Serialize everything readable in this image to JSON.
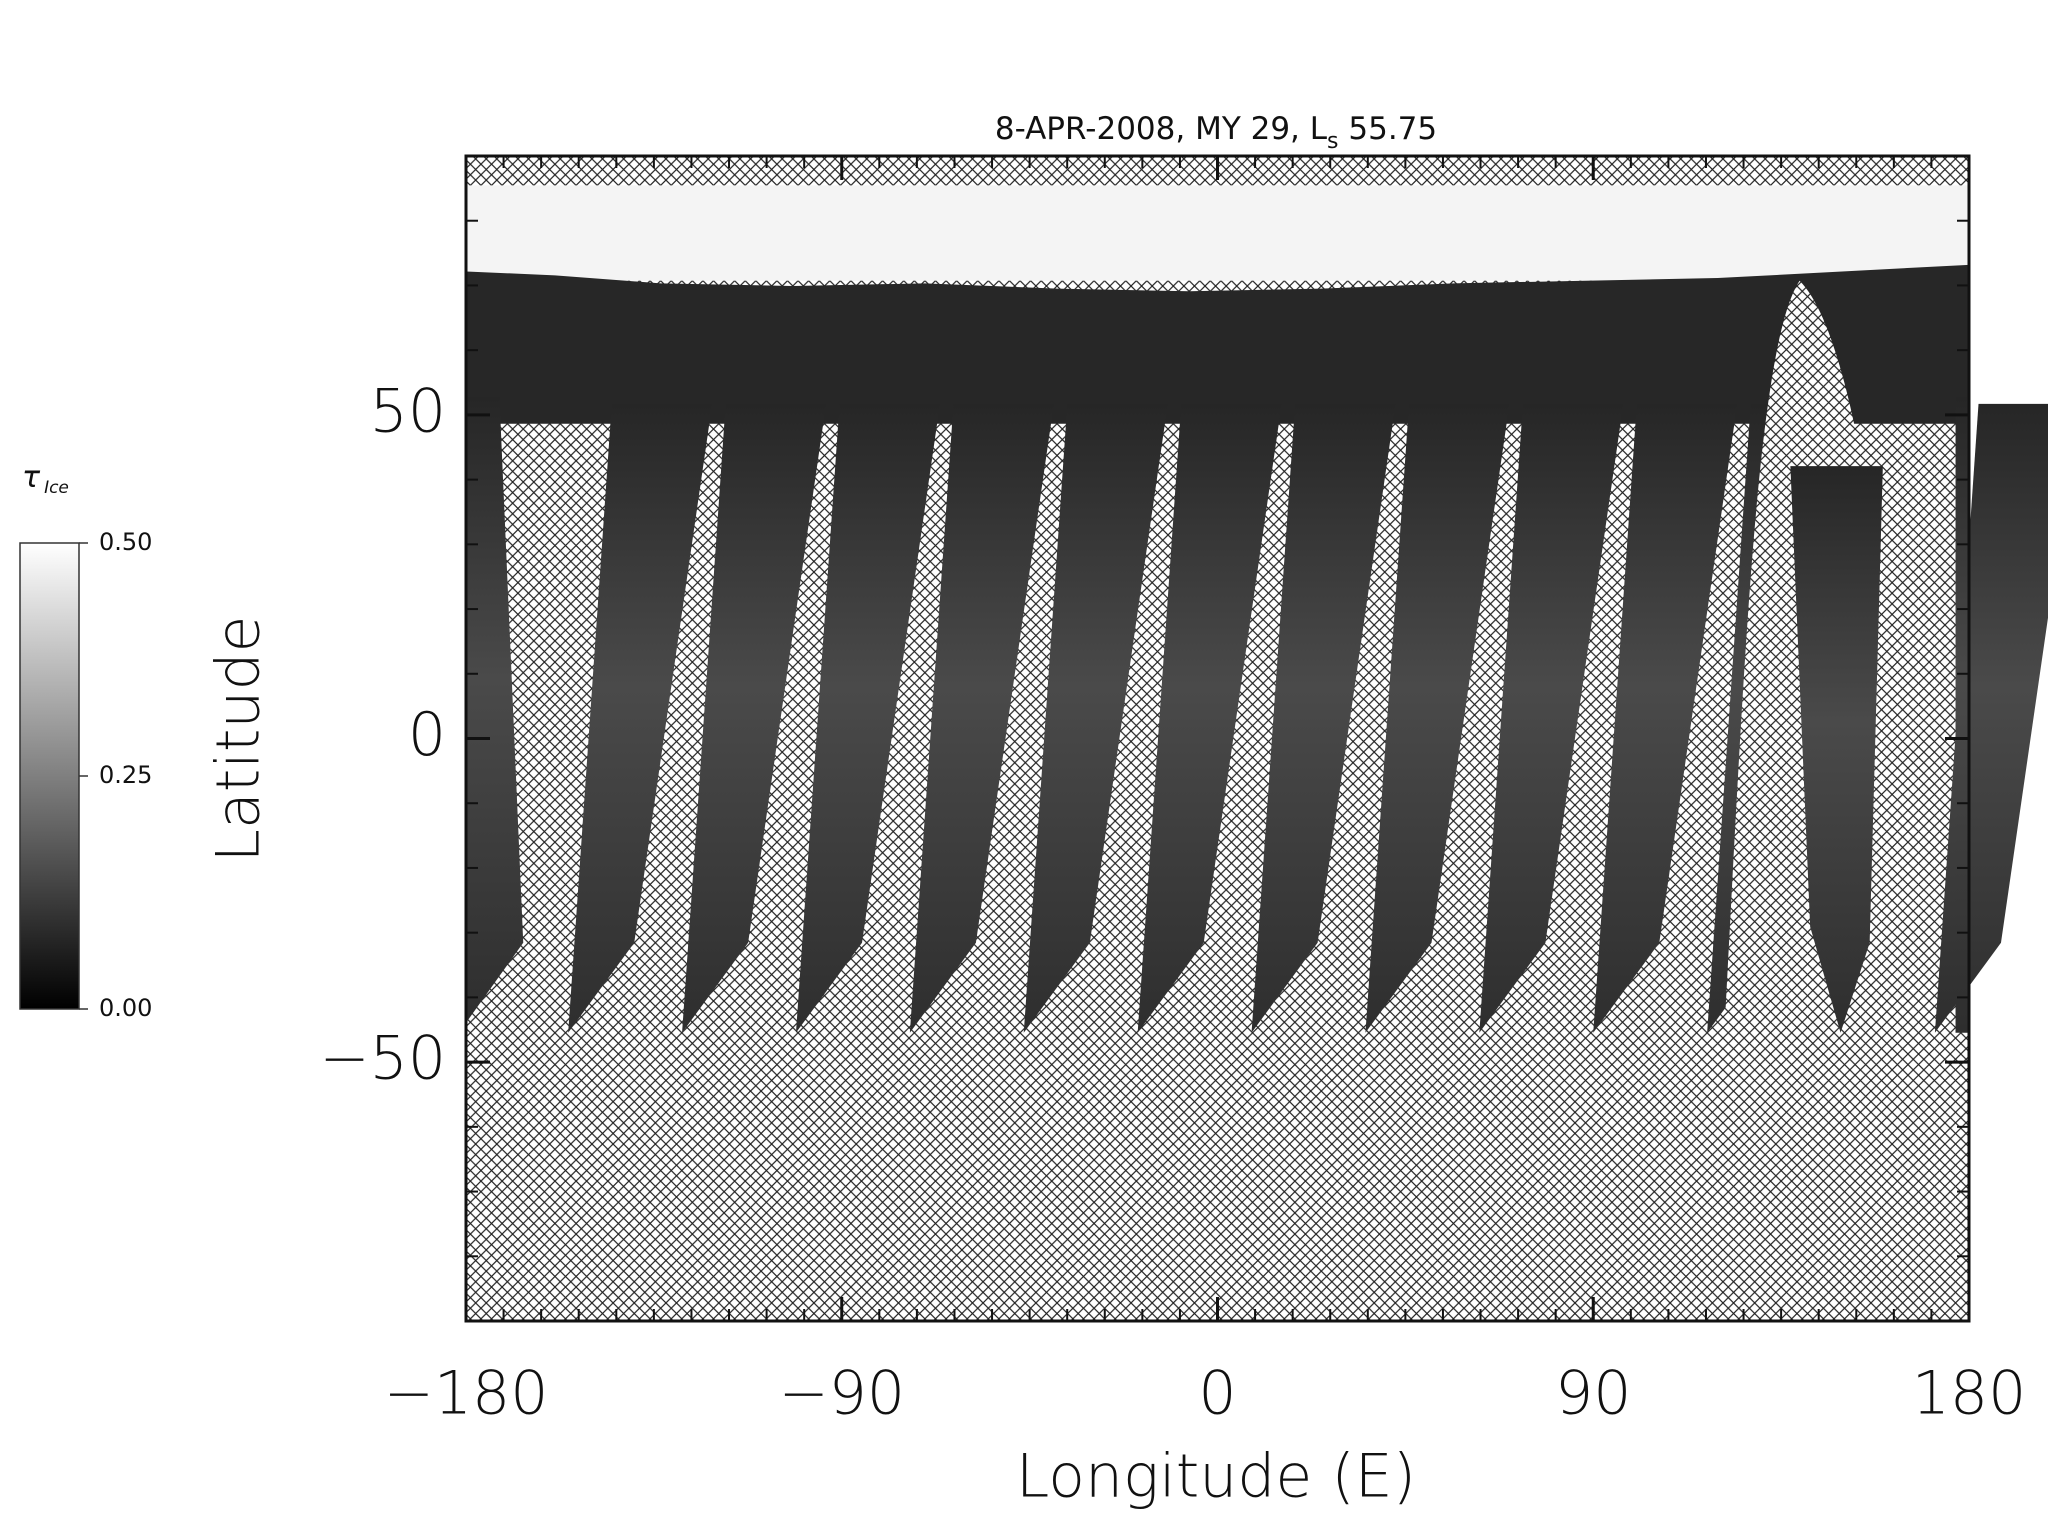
{
  "chart_data": {
    "type": "map",
    "title": [
      "8-APR-2008, MY 29,  L",
      "s",
      " 55.75"
    ],
    "x_label": "Longitude (E)",
    "y_label": "Latitude",
    "xlim": [
      -180,
      180
    ],
    "xticks": [
      {
        "value": -180,
        "label": "−180"
      },
      {
        "value": -90,
        "label": "−90"
      },
      0,
      90,
      180
    ],
    "xminorticks": [
      -171,
      -162,
      -153,
      -144,
      -135,
      -126,
      -117,
      -108,
      -99,
      -81,
      -72,
      -63,
      -54,
      -45,
      -36,
      -27,
      -18,
      -9,
      9,
      18,
      27,
      36,
      45,
      54,
      63,
      72,
      81,
      99,
      108,
      117,
      126,
      135,
      144,
      153,
      162,
      171
    ],
    "ylim": [
      -90,
      90
    ],
    "yticks": [
      {
        "value": -50,
        "label": "−50"
      },
      0,
      50
    ],
    "yminorticks": [
      -80,
      -70,
      -60,
      -40,
      -30,
      -20,
      -10,
      10,
      20,
      30,
      40,
      60,
      70,
      80
    ],
    "colorbar": {
      "label": [
        "τ",
        "Ice"
      ],
      "clim": [
        0,
        0.5
      ],
      "ticks": [
        {
          "value": 0,
          "label": "0.00"
        },
        {
          "value": 0.25,
          "label": "0.25"
        },
        {
          "value": 0.5,
          "label": "0.50"
        }
      ]
    }
  }
}
